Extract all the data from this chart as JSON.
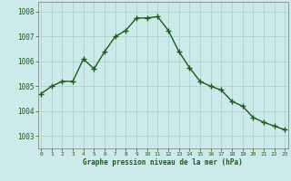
{
  "x": [
    0,
    1,
    2,
    3,
    4,
    5,
    6,
    7,
    8,
    9,
    10,
    11,
    12,
    13,
    14,
    15,
    16,
    17,
    18,
    19,
    20,
    21,
    22,
    23
  ],
  "y": [
    1004.7,
    1005.0,
    1005.2,
    1005.2,
    1006.1,
    1005.7,
    1006.4,
    1007.0,
    1007.25,
    1007.75,
    1007.75,
    1007.8,
    1007.25,
    1006.4,
    1005.75,
    1005.2,
    1005.0,
    1004.85,
    1004.4,
    1004.2,
    1003.75,
    1003.55,
    1003.4,
    1003.25
  ],
  "line_color": "#1a5c1a",
  "marker": "+",
  "marker_size": 4,
  "marker_color": "#1a5c1a",
  "bg_color": "#cdeaea",
  "grid_color": "#a8cccc",
  "xlabel": "Graphe pression niveau de la mer (hPa)",
  "xlabel_color": "#1a5c1a",
  "yticks": [
    1003,
    1004,
    1005,
    1006,
    1007,
    1008
  ],
  "xticks": [
    0,
    1,
    2,
    3,
    4,
    5,
    6,
    7,
    8,
    9,
    10,
    11,
    12,
    13,
    14,
    15,
    16,
    17,
    18,
    19,
    20,
    21,
    22,
    23
  ],
  "ylim": [
    1002.5,
    1008.4
  ],
  "xlim": [
    -0.3,
    23.3
  ],
  "tick_color": "#1a5c1a",
  "axis_color": "#777777",
  "linewidth": 1.0
}
